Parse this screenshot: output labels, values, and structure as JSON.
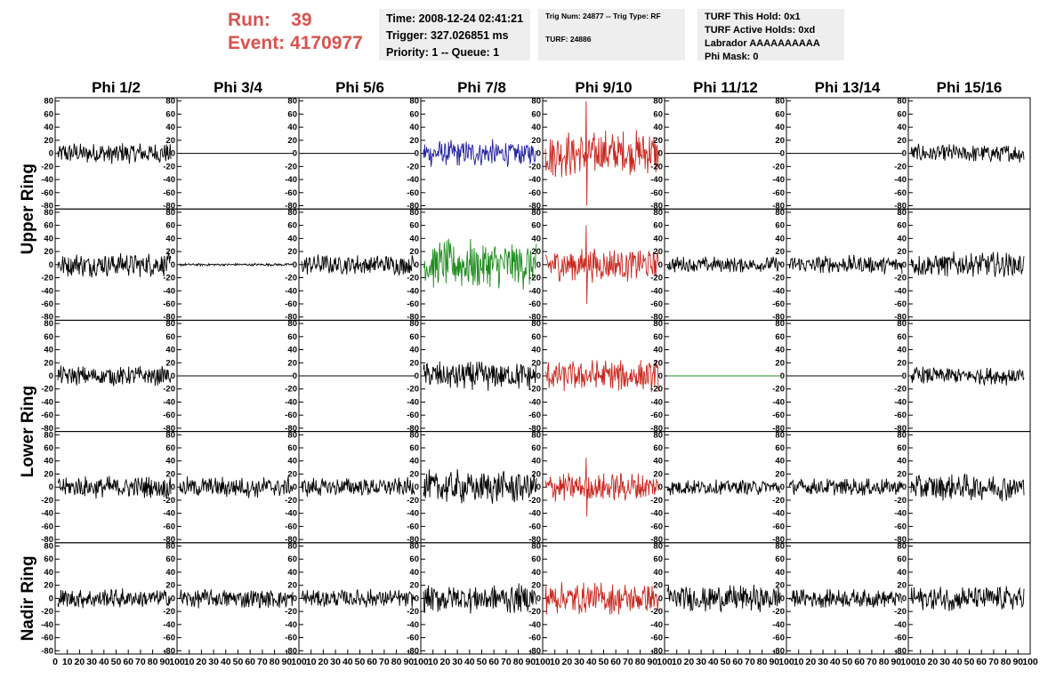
{
  "header": {
    "run_label": "Run:",
    "run_value": "39",
    "event_label": "Event:",
    "event_value": "4170977"
  },
  "time_box": {
    "time": "Time: 2008-12-24 02:41:21",
    "trigger": "Trigger: 327.026851 ms",
    "priority": "Priority: 1 -- Queue: 1"
  },
  "trig_box": {
    "trig": "Trig Num: 24877 -- Trig Type: RF",
    "turf": "TURF: 24886"
  },
  "turf_box": {
    "this_hold": "TURF This Hold: 0x1",
    "active_holds": "TURF Active Holds: 0xd",
    "labrador": "Labrador AAAAAAAAAA",
    "phi_mask": "Phi Mask: 0"
  },
  "chart_data": {
    "type": "line",
    "columns": [
      "Phi 1/2",
      "Phi 3/4",
      "Phi 5/6",
      "Phi 7/8",
      "Phi 9/10",
      "Phi 11/12",
      "Phi 13/14",
      "Phi 15/16"
    ],
    "ring_labels": [
      "Upper Ring",
      "Lower Ring",
      "Nadir Ring"
    ],
    "ylim": [
      -85,
      85
    ],
    "yticks": [
      -80,
      -60,
      -40,
      -20,
      0,
      20,
      40,
      60,
      80
    ],
    "xlim": [
      0,
      100
    ],
    "xticks": [
      0,
      10,
      20,
      30,
      40,
      50,
      60,
      70,
      80,
      90,
      100
    ],
    "colors": {
      "black": "#000000",
      "blue": "#1f1f9e",
      "red": "#c8281e",
      "green": "#1e8c1e"
    },
    "panels": [
      [
        {
          "color": "black",
          "amp": 18,
          "flat": false
        },
        {
          "color": "black",
          "amp": 0,
          "flat": true
        },
        {
          "color": "black",
          "amp": 0,
          "flat": true
        },
        {
          "color": "blue",
          "amp": 22,
          "flat": false
        },
        {
          "color": "red",
          "amp": 38,
          "flat": false,
          "spike": 80
        },
        {
          "color": "black",
          "amp": 0,
          "flat": true
        },
        {
          "color": "black",
          "amp": 0,
          "flat": true
        },
        {
          "color": "black",
          "amp": 15,
          "flat": false
        }
      ],
      [
        {
          "color": "black",
          "amp": 20,
          "flat": false
        },
        {
          "color": "black",
          "amp": 2,
          "flat": false
        },
        {
          "color": "black",
          "amp": 17,
          "flat": false
        },
        {
          "color": "green",
          "amp": 40,
          "flat": false
        },
        {
          "color": "red",
          "amp": 28,
          "flat": false,
          "spike": 60
        },
        {
          "color": "black",
          "amp": 13,
          "flat": false
        },
        {
          "color": "black",
          "amp": 15,
          "flat": false
        },
        {
          "color": "black",
          "amp": 20,
          "flat": false
        }
      ],
      [
        {
          "color": "black",
          "amp": 16,
          "flat": false
        },
        {
          "color": "black",
          "amp": 0,
          "flat": true
        },
        {
          "color": "black",
          "amp": 0,
          "flat": true
        },
        {
          "color": "black",
          "amp": 24,
          "flat": false
        },
        {
          "color": "red",
          "amp": 26,
          "flat": false
        },
        {
          "color": "green",
          "amp": 0,
          "flat": true
        },
        {
          "color": "black",
          "amp": 0,
          "flat": true
        },
        {
          "color": "black",
          "amp": 15,
          "flat": false
        }
      ],
      [
        {
          "color": "black",
          "amp": 18,
          "flat": false
        },
        {
          "color": "black",
          "amp": 17,
          "flat": false
        },
        {
          "color": "black",
          "amp": 16,
          "flat": false
        },
        {
          "color": "black",
          "amp": 28,
          "flat": false
        },
        {
          "color": "red",
          "amp": 24,
          "flat": false,
          "spike": 45
        },
        {
          "color": "black",
          "amp": 13,
          "flat": false
        },
        {
          "color": "black",
          "amp": 14,
          "flat": false
        },
        {
          "color": "black",
          "amp": 22,
          "flat": false
        }
      ],
      [
        {
          "color": "black",
          "amp": 16,
          "flat": false
        },
        {
          "color": "black",
          "amp": 16,
          "flat": false
        },
        {
          "color": "black",
          "amp": 15,
          "flat": false
        },
        {
          "color": "black",
          "amp": 24,
          "flat": false
        },
        {
          "color": "red",
          "amp": 26,
          "flat": false
        },
        {
          "color": "black",
          "amp": 22,
          "flat": false
        },
        {
          "color": "black",
          "amp": 15,
          "flat": false
        },
        {
          "color": "black",
          "amp": 20,
          "flat": false
        }
      ]
    ]
  }
}
